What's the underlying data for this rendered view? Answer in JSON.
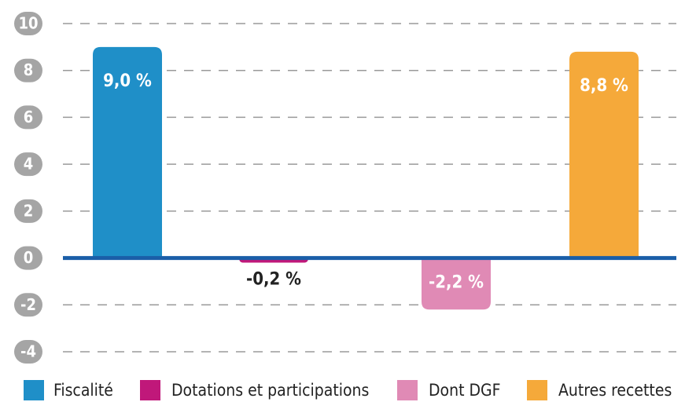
{
  "chart_data": {
    "type": "bar",
    "categories": [
      "Fiscalité",
      "Dotations et participations",
      "Dont DGF",
      "Autres recettes"
    ],
    "values": [
      9.0,
      -0.2,
      -2.2,
      8.8
    ],
    "value_labels": [
      "9,0 %",
      "-0,2 %",
      "-2,2 %",
      "8,8 %"
    ],
    "colors": [
      "#1f8fc8",
      "#c0187a",
      "#e08ab5",
      "#f5a93a"
    ],
    "ylim": [
      -4,
      10
    ],
    "yticks": [
      -4,
      -2,
      0,
      2,
      4,
      6,
      8,
      10
    ],
    "grid": true,
    "legend": "bottom"
  }
}
